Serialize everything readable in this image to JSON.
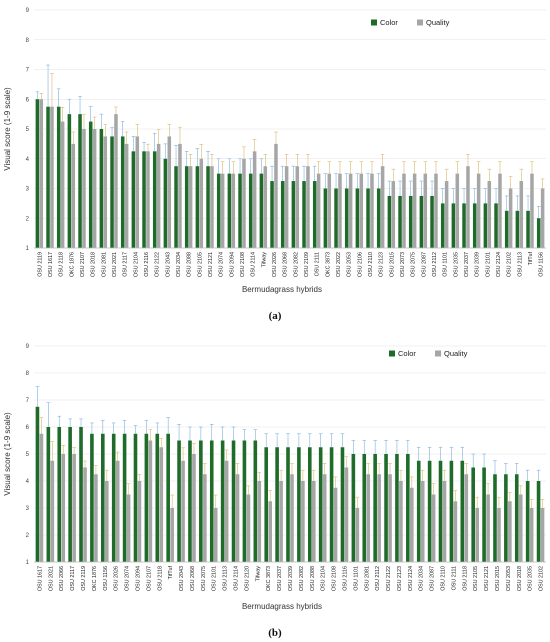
{
  "chart_data": [
    {
      "type": "bar",
      "caption": "(a)",
      "xlabel": "Bermudagrass hybrids",
      "ylabel": "Visual score (1-9 scale)",
      "ylim": [
        1,
        9
      ],
      "yticks": [
        1,
        2,
        3,
        4,
        5,
        6,
        7,
        8,
        9
      ],
      "legend_position": "top-right",
      "categories": [
        "OSU 2119",
        "OSU 1617",
        "OSU 2118",
        "OKC 1876",
        "OSU 2107",
        "OSU 2018",
        "OSU 2081",
        "OSU 2021",
        "OSU 2117",
        "OSU 2104",
        "OSU 2116",
        "OSU 2122",
        "OSU 2043",
        "OSU 2034",
        "OSU 2088",
        "OSU 2105",
        "OSU 2121",
        "OSU 2074",
        "OSU 2094",
        "OSU 2108",
        "OSU 2114",
        "Tifway",
        "OSU 2026",
        "OSU 2068",
        "OSU 2082",
        "OSU 2109",
        "OSU 2111",
        "OKC 3873",
        "OSU 2022",
        "OSU 2053",
        "OSU 2106",
        "OSU 2110",
        "OSU 2123",
        "OSU 2015",
        "OSU 2073",
        "OSU 2075",
        "OSU 2087",
        "OSU 2112",
        "OSU 1101",
        "OSU 2035",
        "OSU 2037",
        "OSU 2039",
        "OSU 2101",
        "OSU 2124",
        "OSU 2102",
        "OSU 2113",
        "TifTuf",
        "OSU 1156"
      ],
      "series": [
        {
          "name": "Color",
          "color": "#1e6b2a",
          "values": [
            6.0,
            5.75,
            5.75,
            5.5,
            5.5,
            5.25,
            5.0,
            4.75,
            4.75,
            4.25,
            4.25,
            4.25,
            4.0,
            3.75,
            3.75,
            3.75,
            3.75,
            3.5,
            3.5,
            3.5,
            3.5,
            3.5,
            3.25,
            3.25,
            3.25,
            3.25,
            3.25,
            3.0,
            3.0,
            3.0,
            3.0,
            3.0,
            3.0,
            2.75,
            2.75,
            2.75,
            2.75,
            2.75,
            2.5,
            2.5,
            2.5,
            2.5,
            2.5,
            2.5,
            2.25,
            2.25,
            2.25,
            2.0
          ]
        },
        {
          "name": "Quality",
          "color": "#a6a6a6",
          "values": [
            6.0,
            5.75,
            5.25,
            4.5,
            5.0,
            5.0,
            4.75,
            5.5,
            4.5,
            4.75,
            4.25,
            4.5,
            4.75,
            4.5,
            3.75,
            4.0,
            3.75,
            3.5,
            3.5,
            4.0,
            4.25,
            3.75,
            4.5,
            3.75,
            3.75,
            3.75,
            3.5,
            3.5,
            3.5,
            3.5,
            3.5,
            3.5,
            3.75,
            3.25,
            3.5,
            3.5,
            3.5,
            3.5,
            3.25,
            3.5,
            3.75,
            3.5,
            3.25,
            3.5,
            3.0,
            3.25,
            3.5,
            3.0
          ]
        }
      ],
      "error": [
        0.25,
        1.4,
        0.6,
        0.5,
        0.6,
        0.5,
        0.5,
        0.3,
        0.5,
        0.5,
        0.3,
        0.6,
        0.5,
        0.7,
        0.5,
        0.6,
        0.5,
        0.5,
        0.5,
        0.5,
        0.5,
        0.5,
        0.5,
        0.5,
        0.5,
        0.5,
        0.5,
        0.5,
        0.5,
        0.5,
        0.5,
        0.5,
        0.5,
        0.5,
        0.5,
        0.5,
        0.5,
        0.5,
        0.5,
        0.5,
        0.5,
        0.5,
        0.5,
        0.5,
        0.5,
        0.5,
        0.5,
        0.4
      ]
    },
    {
      "type": "bar",
      "caption": "(b)",
      "xlabel": "Bermudagrass hybrids",
      "ylabel": "Visual score (1-9 scale)",
      "ylim": [
        1,
        9
      ],
      "yticks": [
        1,
        2,
        3,
        4,
        5,
        6,
        7,
        8,
        9
      ],
      "legend_position": "top-right",
      "categories": [
        "OSU 1617",
        "OSU 2021",
        "OSU 2066",
        "OSU 2117",
        "OSU 2119",
        "OKC 1876",
        "OSU 1156",
        "OSU 2026",
        "OSU 2074",
        "OSU 2094",
        "OSU 2107",
        "OSU 2118",
        "TifTuf",
        "OSU 2043",
        "OSU 2068",
        "OSU 2075",
        "OSU 2101",
        "OSU 2113",
        "OSU 2114",
        "OSU 2120",
        "Tifway",
        "OKC 3873",
        "OSU 2037",
        "OSU 2039",
        "OSU 2082",
        "OSU 2088",
        "OSU 2104",
        "OSU 2108",
        "OSU 2116",
        "OSU 1101",
        "OSU 2081",
        "OSU 2112",
        "OSU 2122",
        "OSU 2123",
        "OSU 2124",
        "OSU 2034",
        "OSU 2087",
        "OSU 2110",
        "OSU 2111",
        "OSU 2118",
        "OSU 2105",
        "OSU 2121",
        "OSU 2015",
        "OSU 2053",
        "OSU 2018",
        "OSU 2035",
        "OSU 2102"
      ],
      "series": [
        {
          "name": "Color",
          "color": "#1e6b2a",
          "values": [
            6.75,
            6.0,
            6.0,
            6.0,
            6.0,
            5.75,
            5.75,
            5.75,
            5.75,
            5.75,
            5.75,
            5.75,
            5.75,
            5.5,
            5.5,
            5.5,
            5.5,
            5.5,
            5.5,
            5.5,
            5.5,
            5.25,
            5.25,
            5.25,
            5.25,
            5.25,
            5.25,
            5.25,
            5.25,
            5.0,
            5.0,
            5.0,
            5.0,
            5.0,
            5.0,
            4.75,
            4.75,
            4.75,
            4.75,
            4.75,
            4.5,
            4.5,
            4.25,
            4.25,
            4.25,
            4.0,
            4.0
          ]
        },
        {
          "name": "Quality",
          "color": "#a6a6a6",
          "values": [
            5.75,
            4.75,
            5.0,
            5.0,
            4.5,
            4.25,
            4.0,
            4.75,
            3.5,
            4.0,
            5.5,
            5.25,
            3.0,
            4.75,
            5.0,
            4.25,
            3.0,
            4.75,
            4.25,
            3.5,
            4.0,
            3.25,
            4.0,
            4.25,
            4.0,
            4.0,
            4.25,
            3.75,
            4.5,
            3.0,
            4.25,
            4.25,
            4.25,
            4.0,
            3.75,
            4.0,
            3.5,
            4.0,
            3.25,
            4.25,
            3.0,
            3.5,
            3.0,
            3.25,
            3.5,
            3.0,
            3.0
          ]
        }
      ],
      "error": [
        0.75,
        0.9,
        0.4,
        0.3,
        0.3,
        0.4,
        0.5,
        0.4,
        0.5,
        0.3,
        0.5,
        0.4,
        0.6,
        0.6,
        0.5,
        0.5,
        0.6,
        0.5,
        0.5,
        0.4,
        0.4,
        0.5,
        0.5,
        0.5,
        0.5,
        0.5,
        0.5,
        0.5,
        0.5,
        0.5,
        0.5,
        0.5,
        0.5,
        0.5,
        0.5,
        0.5,
        0.5,
        0.5,
        0.5,
        0.5,
        0.5,
        0.5,
        0.5,
        0.4,
        0.4,
        0.4,
        0.4
      ]
    }
  ]
}
